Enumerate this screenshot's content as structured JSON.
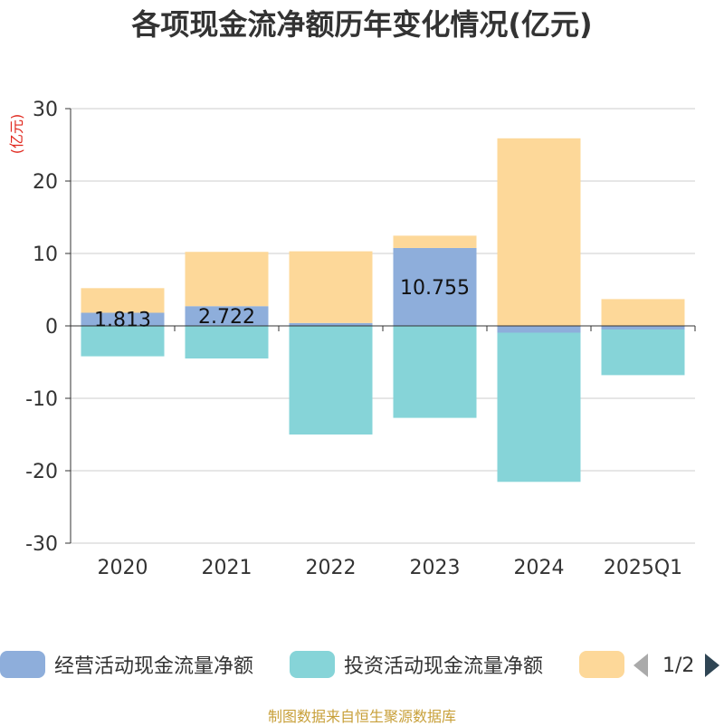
{
  "title": "各项现金流净额历年变化情况(亿元)",
  "source": "制图数据来自恒生聚源数据库",
  "legend": {
    "items": [
      {
        "label": "经营活动现金流量净额",
        "color": "#8eaedb"
      },
      {
        "label": "投资活动现金流量净额",
        "color": "#86d4d8"
      },
      {
        "label": "",
        "color": "#fdd899"
      }
    ],
    "page": "1/2"
  },
  "chart_data": {
    "type": "bar",
    "stacked": true,
    "ylabel": "(亿元)",
    "ylim": [
      -30,
      30
    ],
    "yticks": [
      30,
      20,
      10,
      0,
      -10,
      -20,
      -30
    ],
    "categories": [
      "2020",
      "2021",
      "2022",
      "2023",
      "2024",
      "2025Q1"
    ],
    "grid": true,
    "legend_position": "bottom",
    "series": [
      {
        "name": "经营活动现金流量净额",
        "color": "#8eaedb",
        "values": [
          1.813,
          2.722,
          0.4,
          10.755,
          -0.937,
          -0.5
        ],
        "labels": [
          "1.813",
          "2.722",
          "",
          "10.755",
          "",
          ""
        ]
      },
      {
        "name": "投资活动现金流量净额",
        "color": "#86d4d8",
        "values": [
          -4.2,
          -4.5,
          -15.0,
          -12.7,
          -20.6,
          -6.3
        ]
      },
      {
        "color": "#fdd899",
        "values": [
          3.4,
          7.5,
          9.9,
          1.7,
          25.9,
          3.7
        ]
      }
    ]
  }
}
